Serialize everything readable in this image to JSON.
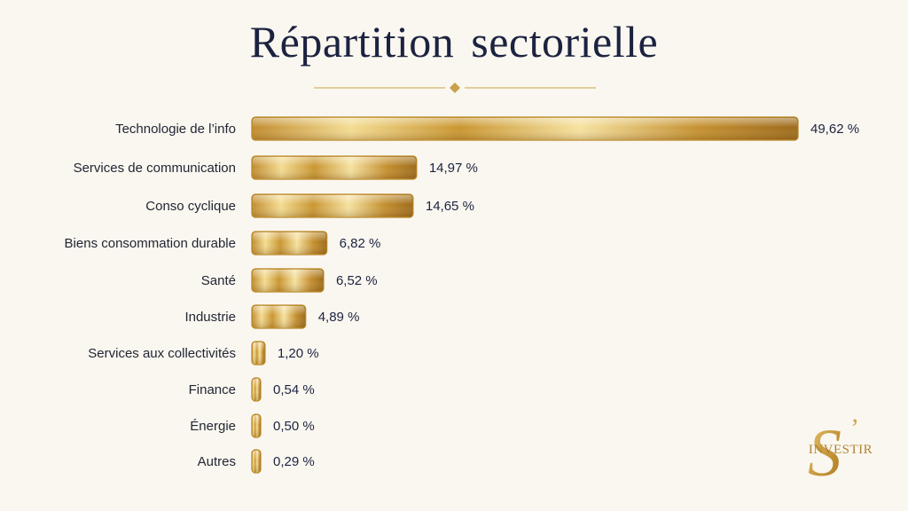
{
  "title": "Répartition  sectorielle",
  "colors": {
    "title": "#1c2340",
    "background": "#faf7f0",
    "gold_light": "#f7e6a6",
    "gold_mid": "#d9ad4c",
    "gold_dark": "#a8741e",
    "gold_edge": "#b8862a"
  },
  "logo": {
    "letter": "S",
    "apostrophe": "’",
    "text": "INVESTIR"
  },
  "chart_data": {
    "type": "bar",
    "orientation": "horizontal",
    "categories": [
      "Technologie de l’info",
      "Services de communication",
      "Conso cyclique",
      "Biens consommation durable",
      "Santé",
      "Industrie",
      "Services aux collectivités",
      "Finance",
      "Énergie",
      "Autres"
    ],
    "values": [
      49.62,
      14.97,
      14.65,
      6.82,
      6.52,
      4.89,
      1.2,
      0.54,
      0.5,
      0.29
    ],
    "value_labels": [
      "49,62 %",
      "14,97 %",
      "14,65 %",
      "6,82 %",
      "6,52 %",
      "4,89 %",
      "1,20 %",
      "0,54 %",
      "0,50 %",
      "0,29 %"
    ],
    "unit": "%",
    "grid": false,
    "legend": "none"
  }
}
